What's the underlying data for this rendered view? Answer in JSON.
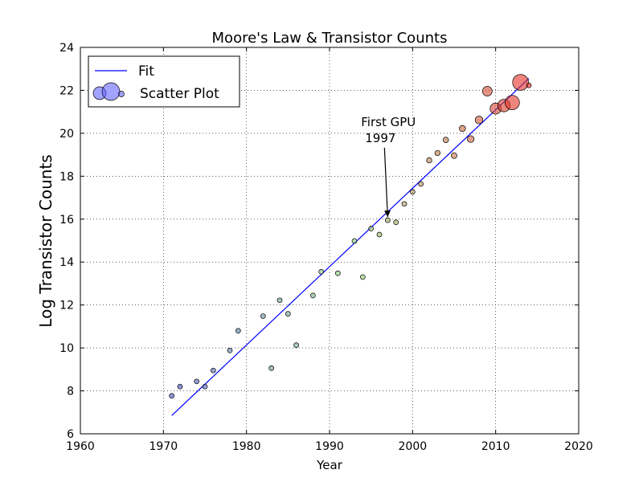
{
  "chart_data": {
    "type": "scatter",
    "title": "Moore's Law & Transistor Counts",
    "xlabel": "Year",
    "ylabel": "Log Transistor Counts",
    "xlim": [
      1960,
      2020
    ],
    "ylim": [
      6,
      24
    ],
    "xticks": [
      1960,
      1970,
      1980,
      1990,
      2000,
      2010,
      2020
    ],
    "yticks": [
      6,
      8,
      10,
      12,
      14,
      16,
      18,
      20,
      22,
      24
    ],
    "grid": true,
    "legend": {
      "placement": "top-left",
      "entries": [
        "Fit",
        "Scatter Plot"
      ]
    },
    "fit_line": {
      "name": "Fit",
      "color": "#0000ff",
      "x": [
        1971,
        2014
      ],
      "y": [
        6.85,
        22.55
      ]
    },
    "scatter": {
      "name": "Scatter Plot",
      "colormap_low": "#3e4cc2",
      "colormap_high": "#e8261f",
      "points": [
        {
          "x": 1971,
          "y": 7.77,
          "s": 1
        },
        {
          "x": 1972,
          "y": 8.2,
          "s": 1
        },
        {
          "x": 1974,
          "y": 8.44,
          "s": 1
        },
        {
          "x": 1975,
          "y": 8.2,
          "s": 1
        },
        {
          "x": 1976,
          "y": 8.95,
          "s": 1
        },
        {
          "x": 1978,
          "y": 9.88,
          "s": 1
        },
        {
          "x": 1979,
          "y": 10.8,
          "s": 1
        },
        {
          "x": 1982,
          "y": 11.48,
          "s": 1
        },
        {
          "x": 1983,
          "y": 9.06,
          "s": 1
        },
        {
          "x": 1984,
          "y": 12.22,
          "s": 1
        },
        {
          "x": 1985,
          "y": 11.59,
          "s": 1
        },
        {
          "x": 1986,
          "y": 10.13,
          "s": 1
        },
        {
          "x": 1988,
          "y": 12.44,
          "s": 1
        },
        {
          "x": 1989,
          "y": 13.55,
          "s": 1
        },
        {
          "x": 1991,
          "y": 13.48,
          "s": 1
        },
        {
          "x": 1993,
          "y": 14.98,
          "s": 1
        },
        {
          "x": 1994,
          "y": 13.3,
          "s": 1
        },
        {
          "x": 1995,
          "y": 15.56,
          "s": 1
        },
        {
          "x": 1996,
          "y": 15.28,
          "s": 1
        },
        {
          "x": 1997,
          "y": 15.95,
          "s": 1
        },
        {
          "x": 1998,
          "y": 15.85,
          "s": 1
        },
        {
          "x": 1999,
          "y": 16.71,
          "s": 1
        },
        {
          "x": 2000,
          "y": 17.27,
          "s": 1
        },
        {
          "x": 2001,
          "y": 17.64,
          "s": 1
        },
        {
          "x": 2002,
          "y": 18.74,
          "s": 1.1
        },
        {
          "x": 2003,
          "y": 19.08,
          "s": 1.1
        },
        {
          "x": 2004,
          "y": 19.69,
          "s": 1.15
        },
        {
          "x": 2005,
          "y": 18.96,
          "s": 1.2
        },
        {
          "x": 2006,
          "y": 20.22,
          "s": 1.3
        },
        {
          "x": 2007,
          "y": 19.73,
          "s": 1.4
        },
        {
          "x": 2008,
          "y": 20.62,
          "s": 1.6
        },
        {
          "x": 2009,
          "y": 21.96,
          "s": 2.0
        },
        {
          "x": 2010,
          "y": 21.15,
          "s": 2.3
        },
        {
          "x": 2011,
          "y": 21.29,
          "s": 2.6
        },
        {
          "x": 2012,
          "y": 21.43,
          "s": 3.0
        },
        {
          "x": 2013,
          "y": 22.37,
          "s": 3.3
        },
        {
          "x": 2014,
          "y": 22.23,
          "s": 1
        }
      ]
    },
    "annotation": {
      "text_line1": "First GPU",
      "text_line2": "1997",
      "point_x": 1997,
      "point_y": 15.95,
      "text_x": 1993.8,
      "text_y": 20.0
    }
  }
}
